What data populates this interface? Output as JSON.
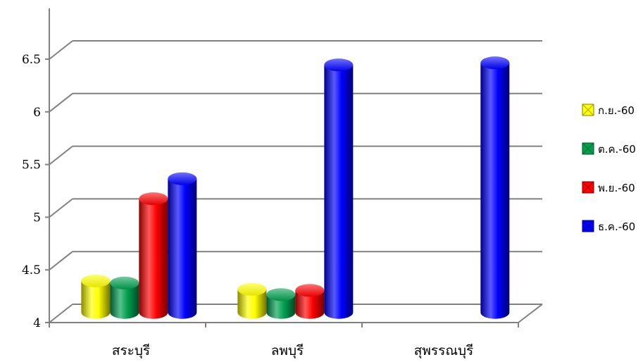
{
  "chart_data": {
    "type": "bar",
    "categories": [
      "สระบุรี",
      "ลพบุรี",
      "สุพรรณบุรี"
    ],
    "series": [
      {
        "name": "ก.ย.-60",
        "color": "#ffff00",
        "values": [
          4.3,
          4.22,
          null
        ]
      },
      {
        "name": "ต.ค.-60",
        "color": "#00a050",
        "values": [
          4.28,
          4.17,
          null
        ]
      },
      {
        "name": "พ.ย.-60",
        "color": "#ff0000",
        "values": [
          5.08,
          4.21,
          null
        ]
      },
      {
        "name": "ธ.ค.-60",
        "color": "#0000ff",
        "values": [
          5.27,
          6.35,
          6.37
        ]
      }
    ],
    "y_ticks": [
      "4",
      "4.5",
      "5",
      "5.5",
      "6",
      "6.5"
    ],
    "ylim": [
      4,
      6.5
    ],
    "grid": true,
    "legend_position": "right",
    "style": "3d-cylinder"
  }
}
